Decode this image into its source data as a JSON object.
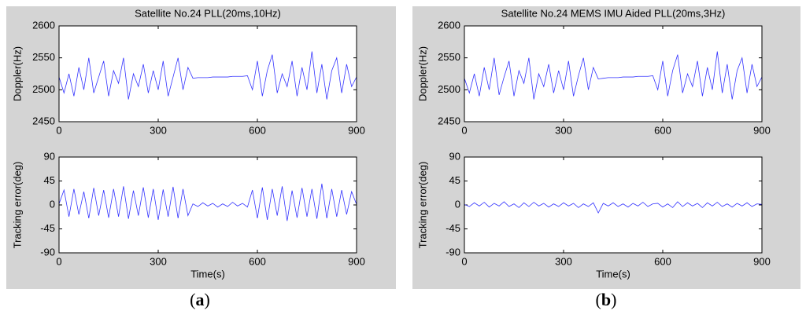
{
  "captions": [
    "(a)",
    "(b)"
  ],
  "chart_data": [
    {
      "type": "line",
      "title": "Satellite No.24 PLL(20ms,10Hz)",
      "ylabel": "Doppler(Hz)",
      "x": [
        0,
        15,
        30,
        45,
        60,
        75,
        90,
        105,
        120,
        135,
        150,
        165,
        180,
        195,
        210,
        225,
        240,
        255,
        270,
        285,
        300,
        315,
        330,
        345,
        360,
        375,
        390,
        405,
        420,
        435,
        450,
        465,
        480,
        495,
        510,
        525,
        540,
        555,
        570,
        585,
        600,
        615,
        630,
        645,
        660,
        675,
        690,
        705,
        720,
        735,
        750,
        765,
        780,
        795,
        810,
        825,
        840,
        855,
        870,
        885,
        900
      ],
      "series": [
        {
          "color": "#3333ff",
          "values": [
            2520,
            2495,
            2525,
            2490,
            2535,
            2500,
            2550,
            2495,
            2520,
            2545,
            2490,
            2530,
            2510,
            2550,
            2485,
            2525,
            2505,
            2540,
            2495,
            2530,
            2500,
            2545,
            2490,
            2520,
            2550,
            2500,
            2535,
            2518,
            2519,
            2519,
            2519,
            2520,
            2520,
            2520,
            2520,
            2521,
            2521,
            2521,
            2522,
            2500,
            2545,
            2490,
            2530,
            2555,
            2495,
            2525,
            2505,
            2545,
            2490,
            2535,
            2500,
            2560,
            2495,
            2540,
            2485,
            2530,
            2550,
            2495,
            2540,
            2505,
            2520
          ]
        }
      ],
      "xlim": [
        0,
        900
      ],
      "ylim": [
        2450,
        2600
      ],
      "xticks": [
        0,
        300,
        600,
        900
      ],
      "yticks": [
        2450,
        2500,
        2550,
        2600
      ]
    },
    {
      "type": "line",
      "ylabel": "Tracking error(deg)",
      "xlabel": "Time(s)",
      "x": [
        0,
        15,
        30,
        45,
        60,
        75,
        90,
        105,
        120,
        135,
        150,
        165,
        180,
        195,
        210,
        225,
        240,
        255,
        270,
        285,
        300,
        315,
        330,
        345,
        360,
        375,
        390,
        405,
        420,
        435,
        450,
        465,
        480,
        495,
        510,
        525,
        540,
        555,
        570,
        585,
        600,
        615,
        630,
        645,
        660,
        675,
        690,
        705,
        720,
        735,
        750,
        765,
        780,
        795,
        810,
        825,
        840,
        855,
        870,
        885,
        900
      ],
      "series": [
        {
          "color": "#3333ff",
          "values": [
            2,
            28,
            -22,
            30,
            -18,
            25,
            -25,
            32,
            -20,
            28,
            -24,
            30,
            -22,
            35,
            -26,
            27,
            -20,
            33,
            -24,
            30,
            -28,
            29,
            -22,
            34,
            -25,
            30,
            -20,
            2,
            -3,
            4,
            -2,
            3,
            -4,
            2,
            -3,
            5,
            -2,
            3,
            -4,
            28,
            -25,
            33,
            -28,
            30,
            -20,
            35,
            -30,
            27,
            -24,
            32,
            -22,
            30,
            -26,
            40,
            -25,
            30,
            -22,
            28,
            -18,
            25,
            1
          ]
        }
      ],
      "xlim": [
        0,
        900
      ],
      "ylim": [
        -90,
        90
      ],
      "xticks": [
        0,
        300,
        600,
        900
      ],
      "yticks": [
        -90,
        -45,
        0,
        45,
        90
      ]
    },
    {
      "type": "line",
      "title": "Satellite No.24 MEMS IMU Aided PLL(20ms,3Hz)",
      "ylabel": "Doppler(Hz)",
      "x": [
        0,
        15,
        30,
        45,
        60,
        75,
        90,
        105,
        120,
        135,
        150,
        165,
        180,
        195,
        210,
        225,
        240,
        255,
        270,
        285,
        300,
        315,
        330,
        345,
        360,
        375,
        390,
        405,
        420,
        435,
        450,
        465,
        480,
        495,
        510,
        525,
        540,
        555,
        570,
        585,
        600,
        615,
        630,
        645,
        660,
        675,
        690,
        705,
        720,
        735,
        750,
        765,
        780,
        795,
        810,
        825,
        840,
        855,
        870,
        885,
        900
      ],
      "series": [
        {
          "color": "#3333ff",
          "values": [
            2518,
            2495,
            2525,
            2490,
            2535,
            2500,
            2550,
            2492,
            2520,
            2545,
            2490,
            2530,
            2510,
            2550,
            2485,
            2525,
            2505,
            2540,
            2495,
            2530,
            2500,
            2545,
            2490,
            2522,
            2550,
            2500,
            2535,
            2517,
            2518,
            2519,
            2519,
            2519,
            2520,
            2520,
            2520,
            2521,
            2521,
            2521,
            2522,
            2500,
            2545,
            2490,
            2530,
            2555,
            2495,
            2525,
            2505,
            2545,
            2490,
            2535,
            2500,
            2560,
            2495,
            2540,
            2485,
            2530,
            2550,
            2495,
            2540,
            2505,
            2520
          ]
        }
      ],
      "xlim": [
        0,
        900
      ],
      "ylim": [
        2450,
        2600
      ],
      "xticks": [
        0,
        300,
        600,
        900
      ],
      "yticks": [
        2450,
        2500,
        2550,
        2600
      ]
    },
    {
      "type": "line",
      "ylabel": "Tracking error(deg)",
      "xlabel": "Time(s)",
      "x": [
        0,
        15,
        30,
        45,
        60,
        75,
        90,
        105,
        120,
        135,
        150,
        165,
        180,
        195,
        210,
        225,
        240,
        255,
        270,
        285,
        300,
        315,
        330,
        345,
        360,
        375,
        390,
        405,
        420,
        435,
        450,
        465,
        480,
        495,
        510,
        525,
        540,
        555,
        570,
        585,
        600,
        615,
        630,
        645,
        660,
        675,
        690,
        705,
        720,
        735,
        750,
        765,
        780,
        795,
        810,
        825,
        840,
        855,
        870,
        885,
        900
      ],
      "series": [
        {
          "color": "#3333ff",
          "values": [
            1,
            -3,
            4,
            -2,
            5,
            -4,
            3,
            -2,
            6,
            -3,
            2,
            -5,
            4,
            -3,
            5,
            -2,
            3,
            -4,
            2,
            -3,
            4,
            -2,
            3,
            -5,
            2,
            -3,
            4,
            -15,
            3,
            -2,
            4,
            -3,
            2,
            -4,
            3,
            -2,
            5,
            -3,
            2,
            3,
            -4,
            2,
            -5,
            6,
            -3,
            4,
            -2,
            3,
            -5,
            4,
            -2,
            5,
            -3,
            2,
            -4,
            3,
            -2,
            4,
            -3,
            2,
            1
          ]
        }
      ],
      "xlim": [
        0,
        900
      ],
      "ylim": [
        -90,
        90
      ],
      "xticks": [
        0,
        300,
        600,
        900
      ],
      "yticks": [
        -90,
        -45,
        0,
        45,
        90
      ]
    }
  ]
}
